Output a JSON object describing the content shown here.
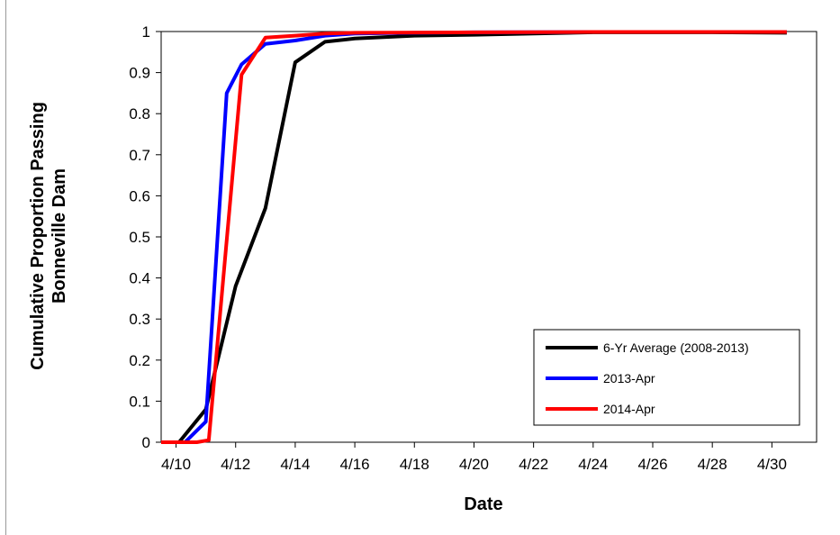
{
  "chart_data": {
    "type": "line",
    "title": "",
    "xlabel": "Date",
    "ylabel_lines": [
      "Cumulative Proportion Passing",
      "Bonneville Dam"
    ],
    "x_tick_labels": [
      "4/10",
      "4/12",
      "4/14",
      "4/16",
      "4/18",
      "4/20",
      "4/22",
      "4/24",
      "4/26",
      "4/28",
      "4/30"
    ],
    "y_tick_labels": [
      "0",
      "0.1",
      "0.2",
      "0.3",
      "0.4",
      "0.5",
      "0.6",
      "0.7",
      "0.8",
      "0.9",
      "1"
    ],
    "xlim": [
      "4/9.5",
      "4/31.5"
    ],
    "ylim": [
      0,
      1
    ],
    "grid": false,
    "legend_position": "bottom-right",
    "series": [
      {
        "name": "6-Yr Average (2008-2013)",
        "color": "#000000",
        "points": [
          [
            "4/9.5",
            0
          ],
          [
            "4/10.1",
            0
          ],
          [
            "4/11",
            0.08
          ],
          [
            "4/12",
            0.38
          ],
          [
            "4/13",
            0.57
          ],
          [
            "4/14",
            0.925
          ],
          [
            "4/15",
            0.975
          ],
          [
            "4/16",
            0.983
          ],
          [
            "4/18",
            0.99
          ],
          [
            "4/20",
            0.992
          ],
          [
            "4/22",
            0.995
          ],
          [
            "4/24",
            0.998
          ],
          [
            "4/26",
            0.998
          ],
          [
            "4/28",
            0.998
          ],
          [
            "4/30.5",
            0.997
          ]
        ]
      },
      {
        "name": "2013-Apr",
        "color": "#0000ff",
        "points": [
          [
            "4/9.5",
            0
          ],
          [
            "4/10.3",
            0
          ],
          [
            "4/11",
            0.05
          ],
          [
            "4/11.7",
            0.85
          ],
          [
            "4/12.2",
            0.92
          ],
          [
            "4/13",
            0.97
          ],
          [
            "4/14",
            0.978
          ],
          [
            "4/15",
            0.99
          ],
          [
            "4/16",
            0.995
          ],
          [
            "4/18",
            0.997
          ],
          [
            "4/20",
            0.998
          ],
          [
            "4/24",
            0.999
          ],
          [
            "4/30.5",
            0.999
          ]
        ]
      },
      {
        "name": "2014-Apr",
        "color": "#ff0000",
        "points": [
          [
            "4/9.5",
            0
          ],
          [
            "4/10.7",
            0
          ],
          [
            "4/11.1",
            0.005
          ],
          [
            "4/12.2",
            0.895
          ],
          [
            "4/13",
            0.985
          ],
          [
            "4/14",
            0.99
          ],
          [
            "4/15",
            0.995
          ],
          [
            "4/16",
            0.997
          ],
          [
            "4/20",
            0.998
          ],
          [
            "4/24",
            0.999
          ],
          [
            "4/30.5",
            0.999
          ]
        ]
      }
    ]
  }
}
